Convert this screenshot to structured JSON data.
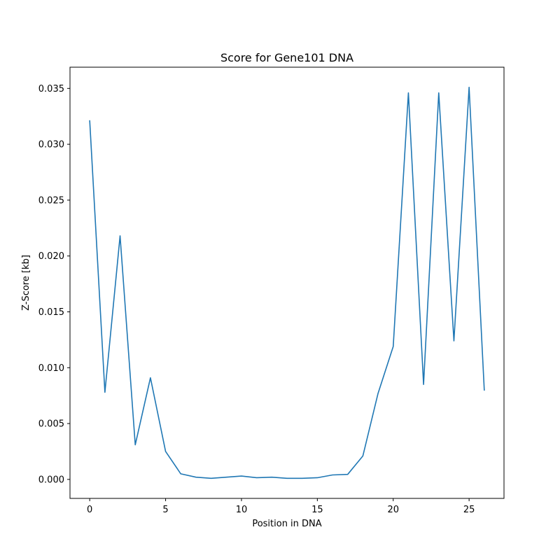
{
  "chart_data": {
    "type": "line",
    "title": "Score for Gene101 DNA",
    "xlabel": "Position in DNA",
    "ylabel": "Z-Score [kb]",
    "xlim": [
      -1.3,
      27.3
    ],
    "ylim": [
      -0.0017,
      0.0369
    ],
    "xticks": [
      0,
      5,
      10,
      15,
      20,
      25
    ],
    "yticks": [
      0.0,
      0.005,
      0.01,
      0.015,
      0.02,
      0.025,
      0.03,
      0.035
    ],
    "xtick_labels": [
      "0",
      "5",
      "10",
      "15",
      "20",
      "25"
    ],
    "ytick_labels": [
      "0.000",
      "0.005",
      "0.010",
      "0.015",
      "0.020",
      "0.025",
      "0.030",
      "0.035"
    ],
    "grid": false,
    "series": [
      {
        "color": "#1f77b4",
        "x": [
          0,
          1,
          2,
          3,
          4,
          5,
          6,
          7,
          8,
          9,
          10,
          11,
          12,
          13,
          14,
          15,
          16,
          17,
          18,
          19,
          20,
          21,
          22,
          23,
          24,
          25,
          26
        ],
        "y": [
          0.0321,
          0.0078,
          0.0218,
          0.0031,
          0.0091,
          0.0025,
          0.0005,
          0.0002,
          0.0001,
          0.0002,
          0.0003,
          0.00015,
          0.0002,
          0.0001,
          0.0001,
          0.00015,
          0.0004,
          0.00045,
          0.0021,
          0.0077,
          0.0119,
          0.0346,
          0.0085,
          0.0346,
          0.0124,
          0.0351,
          0.008
        ]
      }
    ]
  }
}
